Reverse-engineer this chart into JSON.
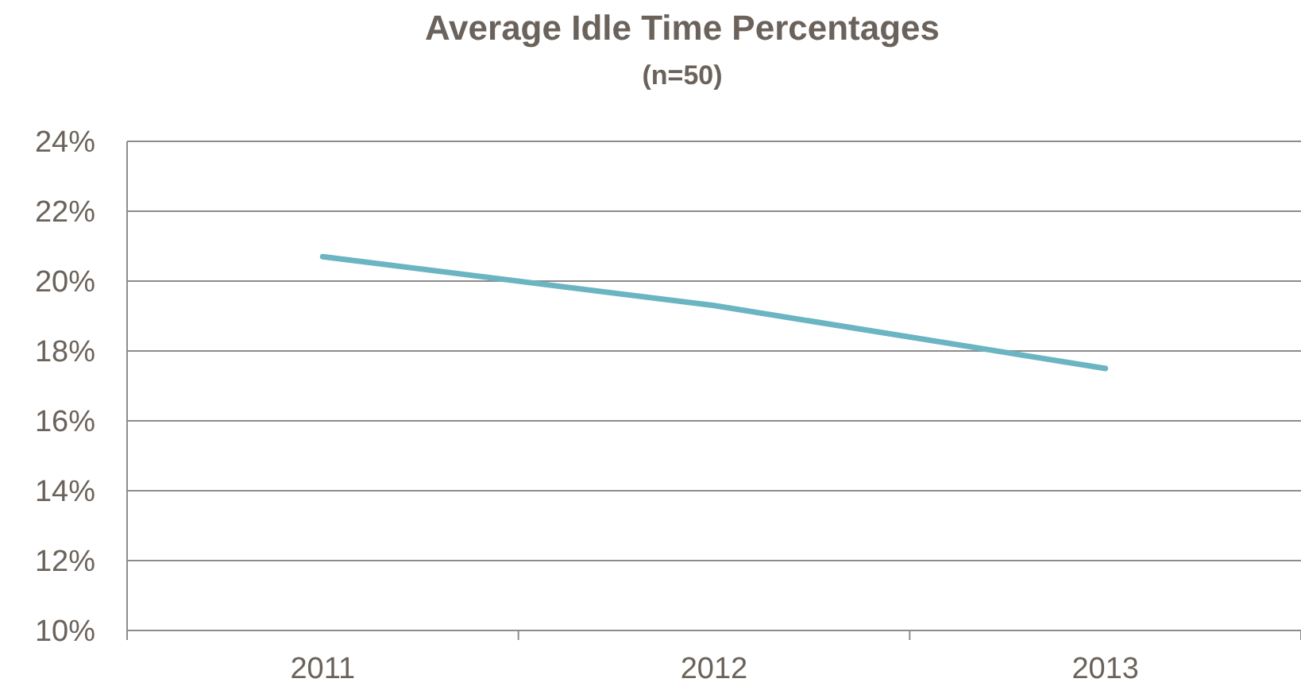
{
  "chart_data": {
    "type": "line",
    "title": "Average Idle Time Percentages",
    "subtitle": "(n=50)",
    "categories": [
      "2011",
      "2012",
      "2013"
    ],
    "series": [
      {
        "color": "#6bb5c2",
        "values": [
          20.7,
          19.3,
          17.5
        ]
      }
    ],
    "ylim": [
      10,
      24
    ],
    "yticks": [
      {
        "value": 10,
        "label": "10%"
      },
      {
        "value": 12,
        "label": "12%"
      },
      {
        "value": 14,
        "label": "14%"
      },
      {
        "value": 16,
        "label": "16%"
      },
      {
        "value": 18,
        "label": "18%"
      },
      {
        "value": 20,
        "label": "20%"
      },
      {
        "value": 22,
        "label": "22%"
      },
      {
        "value": 24,
        "label": "24%"
      }
    ],
    "grid": "y",
    "marker": "none",
    "line_style": "solid"
  }
}
